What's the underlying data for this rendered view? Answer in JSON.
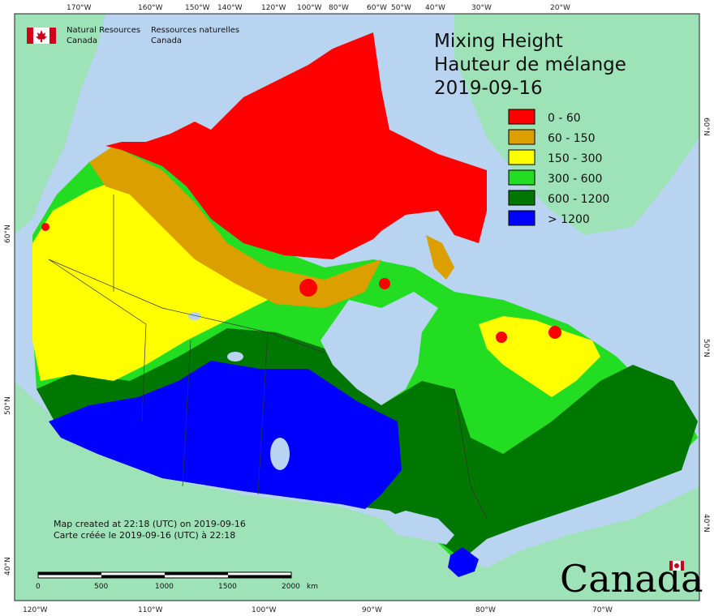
{
  "title": {
    "line1": "Mixing Height",
    "line2": "Hauteur de mélange",
    "date": "2019-09-16"
  },
  "agency": {
    "name_en_1": "Natural Resources",
    "name_en_2": "Canada",
    "name_fr_1": "Ressources naturelles",
    "name_fr_2": "Canada"
  },
  "legend": [
    {
      "label": "0 - 60",
      "color": "#ff0000"
    },
    {
      "label": "60 - 150",
      "color": "#dba000"
    },
    {
      "label": "150 - 300",
      "color": "#ffff00"
    },
    {
      "label": "300 - 600",
      "color": "#22dd22"
    },
    {
      "label": "600 - 1200",
      "color": "#007700"
    },
    {
      "label": "> 1200",
      "color": "#0000ff"
    }
  ],
  "notes": {
    "created_en": "Map created at 22:18 (UTC) on 2019-09-16",
    "created_fr": "Carte créée le 2019-09-16 (UTC) à 22:18"
  },
  "scale_bar": {
    "labels": [
      "0",
      "500",
      "1000",
      "1500",
      "2000"
    ],
    "unit": "km"
  },
  "top_ticks": [
    "170°W",
    "160°W",
    "150°W",
    "140°W",
    "120°W",
    "100°W",
    "80°W",
    "60°W",
    "50°W",
    "40°W",
    "30°W",
    "20°W"
  ],
  "bottom_ticks": [
    "120°W",
    "110°W",
    "100°W",
    "90°W",
    "80°W",
    "70°W"
  ],
  "left_ticks": [
    "60°N",
    "50°N",
    "40°N"
  ],
  "right_ticks": [
    "60°N",
    "50°N",
    "40°N"
  ],
  "wordmark": "Canada",
  "colors": {
    "ocean": "#b9d4f0",
    "land_outside": "#9ee3b8",
    "lake": "#b9d4f0"
  }
}
